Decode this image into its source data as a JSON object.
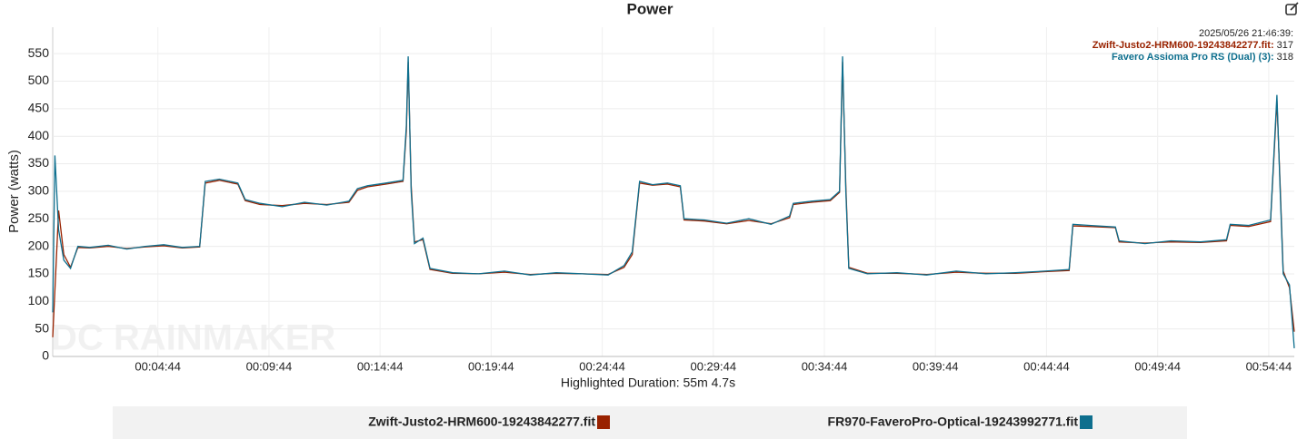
{
  "chart_data": {
    "type": "line",
    "title": "Power",
    "ylabel": "Power (watts)",
    "xlabel": "Highlighted Duration: 55m 4.7s",
    "watermark": "DC RAINMAKER",
    "tooltip": {
      "time": "2025/05/26 21:46:39:",
      "entries": [
        {
          "name": "Zwift-Justo2-HRM600-19243842277.fit:",
          "value": 317,
          "color": "#992200"
        },
        {
          "name": "Favero Assioma Pro RS (Dual) (3):",
          "value": 318,
          "color": "#0e6f8e"
        }
      ]
    },
    "xlim": [
      0,
      3353
    ],
    "xticks": [
      {
        "value": 284,
        "label": "00:04:44"
      },
      {
        "value": 584,
        "label": "00:09:44"
      },
      {
        "value": 884,
        "label": "00:14:44"
      },
      {
        "value": 1184,
        "label": "00:19:44"
      },
      {
        "value": 1484,
        "label": "00:24:44"
      },
      {
        "value": 1784,
        "label": "00:29:44"
      },
      {
        "value": 2084,
        "label": "00:34:44"
      },
      {
        "value": 2384,
        "label": "00:39:44"
      },
      {
        "value": 2684,
        "label": "00:44:44"
      },
      {
        "value": 2984,
        "label": "00:49:44"
      },
      {
        "value": 3284,
        "label": "00:54:44"
      }
    ],
    "ylim": [
      0,
      598
    ],
    "yticks": [
      0,
      50,
      100,
      150,
      200,
      250,
      300,
      350,
      400,
      450,
      500,
      550
    ],
    "grid": true,
    "x": [
      0,
      6,
      16,
      30,
      48,
      68,
      100,
      150,
      200,
      250,
      300,
      350,
      397,
      412,
      450,
      500,
      520,
      560,
      620,
      680,
      740,
      800,
      823,
      850,
      900,
      946,
      955,
      960,
      968,
      977,
      1000,
      1019,
      1080,
      1150,
      1220,
      1290,
      1360,
      1430,
      1500,
      1543,
      1565,
      1585,
      1620,
      1660,
      1695,
      1705,
      1760,
      1820,
      1880,
      1940,
      1990,
      2000,
      2050,
      2100,
      2125,
      2133,
      2142,
      2150,
      2200,
      2280,
      2360,
      2440,
      2520,
      2600,
      2680,
      2745,
      2755,
      2800,
      2870,
      2880,
      2950,
      3020,
      3100,
      3170,
      3180,
      3230,
      3289,
      3306,
      3315,
      3323,
      3340,
      3353
    ],
    "series": [
      {
        "name": "Zwift-Justo2-HRM600-19243842277.fit",
        "color": "#992200",
        "values": [
          35,
          120,
          265,
          185,
          162,
          198,
          197,
          200,
          196,
          199,
          201,
          197,
          199,
          315,
          320,
          313,
          283,
          276,
          274,
          278,
          276,
          280,
          302,
          308,
          313,
          318,
          410,
          535,
          310,
          208,
          212,
          158,
          151,
          150,
          153,
          149,
          151,
          150,
          149,
          162,
          185,
          315,
          311,
          313,
          308,
          248,
          246,
          241,
          247,
          241,
          252,
          276,
          280,
          283,
          298,
          535,
          310,
          162,
          151,
          151,
          149,
          153,
          151,
          151,
          154,
          156,
          237,
          236,
          234,
          208,
          206,
          208,
          207,
          210,
          238,
          236,
          245,
          465,
          310,
          155,
          125,
          45
        ]
      },
      {
        "name": "FR970-FaveroPro-Optical-19243992771.fit",
        "color": "#0e6f8e",
        "values": [
          80,
          365,
          230,
          175,
          160,
          200,
          198,
          202,
          195,
          200,
          203,
          198,
          200,
          318,
          322,
          315,
          285,
          278,
          272,
          280,
          275,
          282,
          305,
          310,
          315,
          320,
          420,
          545,
          300,
          205,
          215,
          160,
          152,
          150,
          155,
          148,
          152,
          150,
          148,
          165,
          190,
          318,
          312,
          315,
          310,
          250,
          248,
          242,
          250,
          240,
          255,
          278,
          282,
          285,
          300,
          545,
          300,
          160,
          150,
          152,
          148,
          155,
          150,
          152,
          155,
          158,
          240,
          238,
          235,
          210,
          205,
          210,
          208,
          212,
          240,
          238,
          248,
          475,
          300,
          150,
          130,
          15
        ]
      }
    ]
  }
}
